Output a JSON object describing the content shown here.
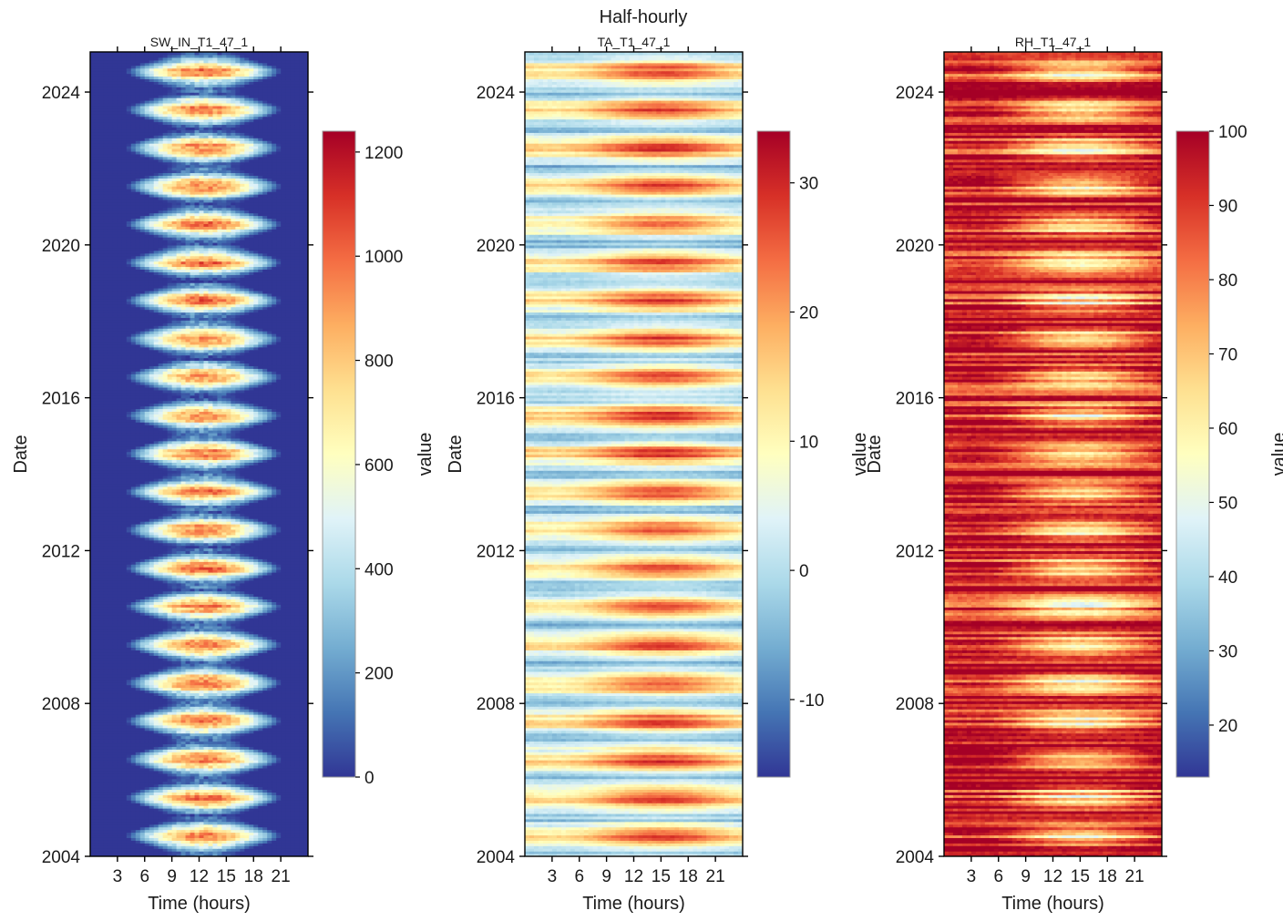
{
  "figure_title": "Half-hourly",
  "chart_data": [
    {
      "type": "heatmap",
      "title": "SW_IN_T1_47_1",
      "xlabel": "Time (hours)",
      "ylabel": "Date",
      "x_ticks": [
        3,
        6,
        9,
        12,
        15,
        18,
        21
      ],
      "x_tick_labels": [
        "3",
        "6",
        "9",
        "12",
        "15",
        "18",
        "21"
      ],
      "xlim": [
        0,
        24
      ],
      "y_ticks": [
        2004,
        2008,
        2012,
        2016,
        2020,
        2024
      ],
      "y_tick_labels": [
        "2004",
        "2008",
        "2012",
        "2016",
        "2020",
        "2024"
      ],
      "ylim": [
        2004,
        2025.05
      ],
      "colorbar": {
        "label": "value",
        "range": [
          0,
          1240
        ],
        "ticks": [
          0,
          200,
          400,
          600,
          800,
          1000,
          1200
        ],
        "tick_labels": [
          "0",
          "200",
          "400",
          "600",
          "800",
          "1000",
          "1200"
        ]
      }
    },
    {
      "type": "heatmap",
      "title": "TA_T1_47_1",
      "xlabel": "Time (hours)",
      "ylabel": "Date",
      "x_ticks": [
        3,
        6,
        9,
        12,
        15,
        18,
        21
      ],
      "x_tick_labels": [
        "3",
        "6",
        "9",
        "12",
        "15",
        "18",
        "21"
      ],
      "xlim": [
        0,
        24
      ],
      "y_ticks": [
        2004,
        2008,
        2012,
        2016,
        2020,
        2024
      ],
      "y_tick_labels": [
        "2004",
        "2008",
        "2012",
        "2016",
        "2020",
        "2024"
      ],
      "ylim": [
        2004,
        2025.05
      ],
      "colorbar": {
        "label": "value",
        "range": [
          -16,
          34
        ],
        "ticks": [
          -10,
          0,
          10,
          20,
          30
        ],
        "tick_labels": [
          "-10",
          "0",
          "10",
          "20",
          "30"
        ]
      }
    },
    {
      "type": "heatmap",
      "title": "RH_T1_47_1",
      "xlabel": "Time (hours)",
      "ylabel": "Date",
      "x_ticks": [
        3,
        6,
        9,
        12,
        15,
        18,
        21
      ],
      "x_tick_labels": [
        "3",
        "6",
        "9",
        "12",
        "15",
        "18",
        "21"
      ],
      "xlim": [
        0,
        24
      ],
      "y_ticks": [
        2004,
        2008,
        2012,
        2016,
        2020,
        2024
      ],
      "y_tick_labels": [
        "2004",
        "2008",
        "2012",
        "2016",
        "2020",
        "2024"
      ],
      "ylim": [
        2004,
        2025.05
      ],
      "colorbar": {
        "label": "value",
        "range": [
          13,
          100
        ],
        "ticks": [
          20,
          30,
          40,
          50,
          60,
          70,
          80,
          90,
          100
        ],
        "tick_labels": [
          "20",
          "30",
          "40",
          "50",
          "60",
          "70",
          "80",
          "90",
          "100"
        ]
      }
    }
  ],
  "colormap": [
    "#313695",
    "#4575b4",
    "#74add1",
    "#abd9e9",
    "#e0f3f8",
    "#ffffbf",
    "#fee090",
    "#fdae61",
    "#f46d43",
    "#d73027",
    "#a50026"
  ]
}
